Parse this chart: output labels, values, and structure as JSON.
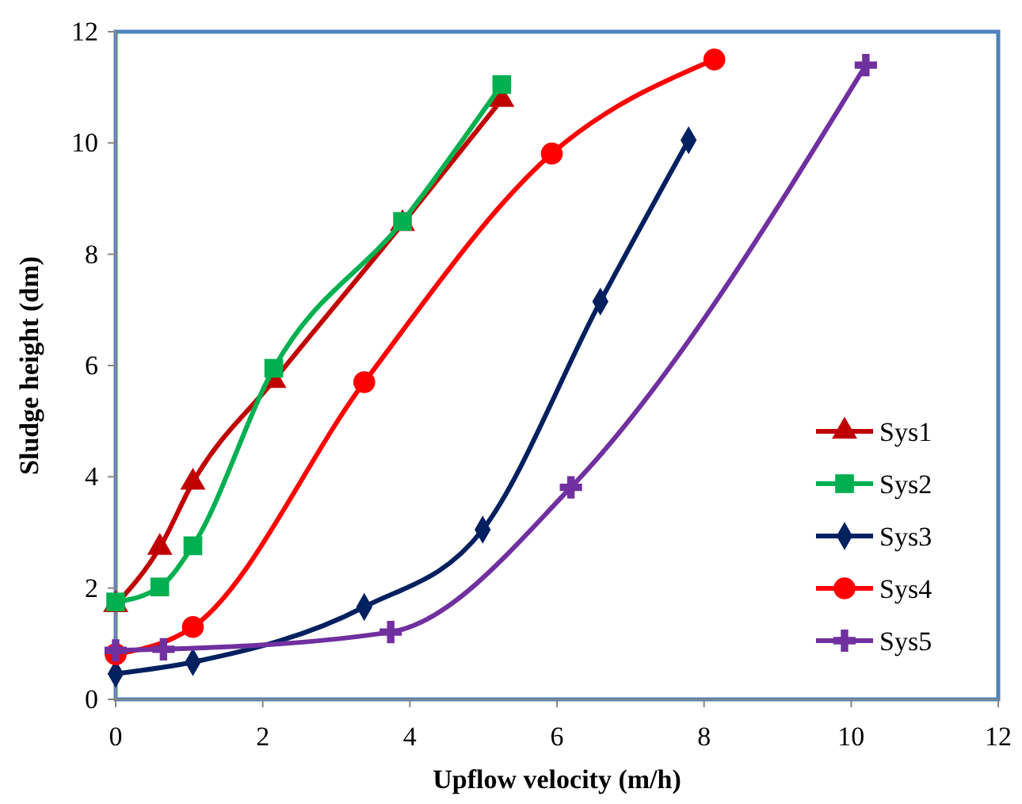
{
  "chart_data": {
    "type": "line",
    "xlabel": "Upflow velocity (m/h)",
    "ylabel": "Sludge height (dm)",
    "xlim": [
      0,
      12
    ],
    "ylim": [
      0,
      12
    ],
    "xticks": [
      0,
      2,
      4,
      6,
      8,
      10,
      12
    ],
    "yticks": [
      0,
      2,
      4,
      6,
      8,
      10,
      12
    ],
    "grid": false,
    "legend": "bottom right",
    "line_style": "solid",
    "series": [
      {
        "name": "Sys1",
        "color": "#c00000",
        "marker": "triangle",
        "x": [
          0,
          0.6,
          1.05,
          2.15,
          3.9,
          5.25
        ],
        "values": [
          1.7,
          2.73,
          3.9,
          5.73,
          8.55,
          10.78
        ]
      },
      {
        "name": "Sys2",
        "color": "#00b050",
        "marker": "square",
        "x": [
          0,
          0.6,
          1.05,
          2.15,
          3.9,
          5.25
        ],
        "values": [
          1.75,
          2.02,
          2.76,
          5.95,
          8.59,
          11.05
        ]
      },
      {
        "name": "Sys3",
        "color": "#002060",
        "marker": "diamond",
        "x": [
          0,
          1.05,
          3.38,
          4.99,
          6.59,
          7.79
        ],
        "values": [
          0.46,
          0.67,
          1.66,
          3.05,
          7.15,
          10.05
        ]
      },
      {
        "name": "Sys4",
        "color": "#ff0000",
        "marker": "circle",
        "x": [
          0,
          1.05,
          3.38,
          5.93,
          8.14
        ],
        "values": [
          0.81,
          1.3,
          5.7,
          9.81,
          11.5
        ]
      },
      {
        "name": "Sys5",
        "color": "#7030a0",
        "marker": "cross",
        "x": [
          0,
          0.65,
          3.74,
          6.19,
          10.2
        ],
        "values": [
          0.88,
          0.9,
          1.21,
          3.81,
          11.4
        ]
      }
    ]
  }
}
